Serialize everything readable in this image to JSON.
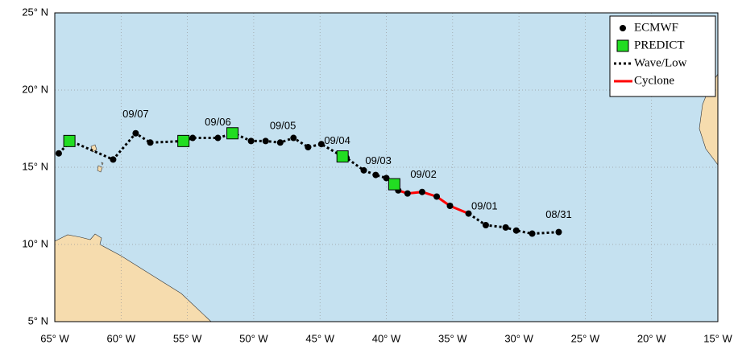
{
  "chart_data": {
    "type": "track",
    "xlim": [
      -65,
      -15
    ],
    "ylim": [
      5,
      25
    ],
    "xticks": [
      {
        "value": -65,
        "label": "65° W"
      },
      {
        "value": -60,
        "label": "60° W"
      },
      {
        "value": -55,
        "label": "55° W"
      },
      {
        "value": -50,
        "label": "50° W"
      },
      {
        "value": -45,
        "label": "45° W"
      },
      {
        "value": -40,
        "label": "40° W"
      },
      {
        "value": -35,
        "label": "35° W"
      },
      {
        "value": -30,
        "label": "30° W"
      },
      {
        "value": -25,
        "label": "25° W"
      },
      {
        "value": -20,
        "label": "20° W"
      },
      {
        "value": -15,
        "label": "15° W"
      }
    ],
    "yticks": [
      {
        "value": 5,
        "label": "5° N"
      },
      {
        "value": 10,
        "label": "10° N"
      },
      {
        "value": 15,
        "label": "15° N"
      },
      {
        "value": 20,
        "label": "20° N"
      },
      {
        "value": 25,
        "label": "25° N"
      }
    ],
    "grid": true,
    "legend": "upper right",
    "series": [
      {
        "name": "Wave/Low",
        "kind": "line",
        "linestyle": "dotted",
        "color": "#000000",
        "x": [
          -27.0,
          -29.0,
          -30.2,
          -31.0,
          -32.5,
          -33.8,
          -35.2,
          -36.2,
          -37.3,
          -38.4,
          -39.1,
          -40.0,
          -40.8,
          -41.7,
          -43.0,
          -43.3,
          -44.9,
          -45.9,
          -47.0,
          -48.0,
          -49.1,
          -50.2,
          -51.5,
          -52.7,
          -54.6,
          -55.2,
          -57.8,
          -58.9,
          -60.6,
          -63.8,
          -64.7
        ],
        "y": [
          10.8,
          10.7,
          10.9,
          11.1,
          11.25,
          12.0,
          null,
          null,
          null,
          null,
          13.5,
          14.3,
          14.5,
          14.8,
          15.6,
          15.7,
          16.5,
          16.3,
          16.9,
          16.6,
          16.7,
          16.7,
          17.2,
          16.9,
          16.9,
          16.7,
          16.6,
          17.2,
          15.5,
          16.7,
          15.9
        ]
      },
      {
        "name": "Cyclone",
        "kind": "line",
        "linestyle": "solid",
        "color": "#ff0000",
        "x": [
          -33.8,
          -35.2,
          -36.2,
          -37.3,
          -38.4,
          -39.1,
          -39.4
        ],
        "y": [
          12.0,
          12.5,
          13.1,
          13.4,
          13.3,
          13.5,
          13.9
        ]
      },
      {
        "name": "ECMWF",
        "kind": "points",
        "marker": "circle",
        "color": "#000000",
        "x": [
          -27.0,
          -29.0,
          -30.2,
          -31.0,
          -32.5,
          -33.8,
          -35.2,
          -36.2,
          -37.3,
          -38.4,
          -39.1,
          -40.0,
          -40.8,
          -41.7,
          -43.0,
          -43.3,
          -44.9,
          -45.9,
          -47.0,
          -48.0,
          -49.1,
          -50.2,
          -51.5,
          -52.7,
          -54.6,
          -55.2,
          -57.8,
          -58.9,
          -60.6,
          -63.8,
          -64.7
        ],
        "y": [
          10.8,
          10.7,
          10.9,
          11.1,
          11.25,
          12.0,
          12.5,
          13.1,
          13.4,
          13.3,
          13.5,
          14.3,
          14.5,
          14.8,
          15.6,
          15.7,
          16.5,
          16.3,
          16.9,
          16.6,
          16.7,
          16.7,
          17.2,
          16.9,
          16.9,
          16.7,
          16.6,
          17.2,
          15.5,
          16.7,
          15.9
        ]
      },
      {
        "name": "PREDICT",
        "kind": "points",
        "marker": "square",
        "color": "#22dd22",
        "x": [
          -63.9,
          -55.3,
          -51.6,
          -43.3,
          -39.4
        ],
        "y": [
          16.7,
          16.7,
          17.2,
          15.7,
          13.9
        ]
      }
    ],
    "annotations": [
      {
        "text": "08/31",
        "x": -27.0,
        "y": 11.9
      },
      {
        "text": "09/01",
        "x": -32.6,
        "y": 12.45
      },
      {
        "text": "09/02",
        "x": -37.2,
        "y": 14.5
      },
      {
        "text": "09/03",
        "x": -40.6,
        "y": 15.4
      },
      {
        "text": "09/04",
        "x": -43.7,
        "y": 16.7
      },
      {
        "text": "09/05",
        "x": -47.8,
        "y": 17.65
      },
      {
        "text": "09/06",
        "x": -52.7,
        "y": 17.9
      },
      {
        "text": "09/07",
        "x": -58.9,
        "y": 18.4
      }
    ]
  }
}
